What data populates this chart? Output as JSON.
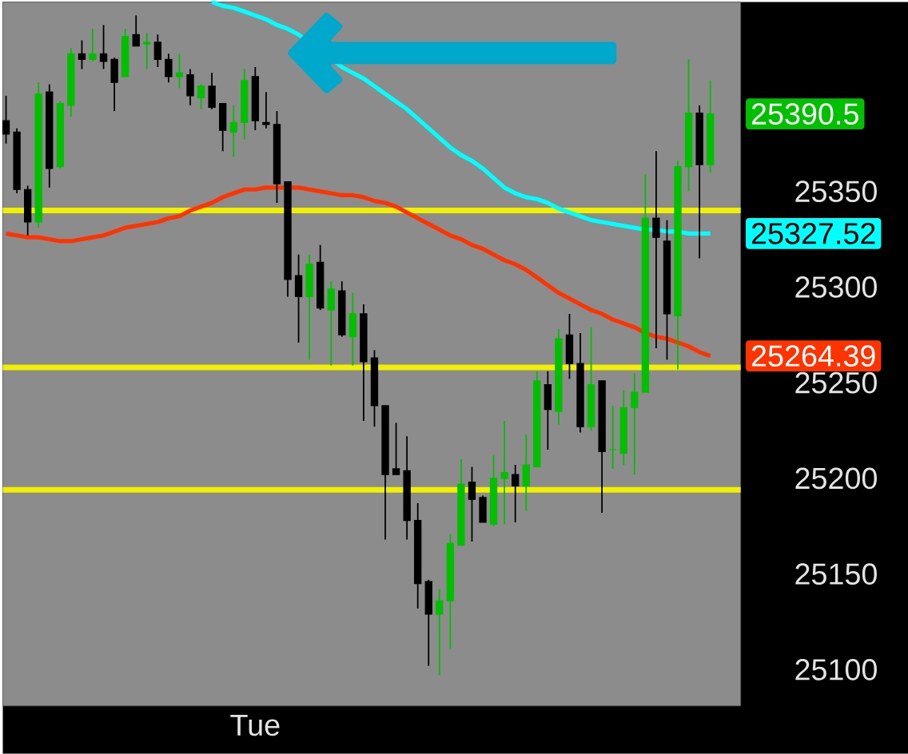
{
  "chart_data": {
    "type": "candlestick",
    "categories": [
      null,
      null,
      null,
      null,
      null,
      null,
      null,
      null,
      null,
      null,
      null,
      null,
      null,
      null,
      null,
      null,
      null,
      null,
      null,
      null,
      null,
      null,
      null,
      "Tue",
      null,
      null,
      null,
      null,
      null,
      null,
      null,
      null,
      null,
      null,
      null,
      null,
      null,
      null,
      null,
      null,
      null,
      null,
      null,
      null,
      null,
      null,
      null,
      null,
      null,
      null,
      null,
      null,
      null,
      null,
      null,
      null,
      null,
      null,
      null,
      null,
      null,
      null,
      null,
      null,
      null,
      null
    ],
    "ohlc": [
      [
        25387,
        25400,
        25375,
        25380
      ],
      [
        25381,
        25383,
        25349,
        25351
      ],
      [
        25351,
        25353,
        25327,
        25334
      ],
      [
        25334,
        25407,
        25331,
        25401
      ],
      [
        25402,
        25406,
        25352,
        25362
      ],
      [
        25363,
        25397,
        25362,
        25396
      ],
      [
        25395,
        25425,
        25389,
        25422
      ],
      [
        25422,
        25429,
        25414,
        25419
      ],
      [
        25419,
        25435,
        25418,
        25422
      ],
      [
        25422,
        25437,
        25414,
        25418
      ],
      [
        25419,
        25420,
        25392,
        25407
      ],
      [
        25410,
        25435,
        25410,
        25431
      ],
      [
        25432,
        25442,
        25426,
        25426
      ],
      [
        25427,
        25433,
        25414,
        25428
      ],
      [
        25428,
        25432,
        25415,
        25419
      ],
      [
        25419,
        25422,
        25407,
        25410
      ],
      [
        25410,
        25422,
        25404,
        25412
      ],
      [
        25411,
        25414,
        25395,
        25400
      ],
      [
        25399,
        25406,
        25393,
        25405
      ],
      [
        25405,
        25412,
        25393,
        25394
      ],
      [
        25396,
        25396,
        25371,
        25382
      ],
      [
        25381,
        25395,
        25368,
        25386
      ],
      [
        25386,
        25414,
        25377,
        25408
      ],
      [
        25410,
        25415,
        25382,
        25387
      ],
      [
        25386,
        25402,
        25383,
        25385
      ],
      [
        25385,
        25392,
        25344,
        25354
      ],
      [
        25355,
        25355,
        25295,
        25304
      ],
      [
        25306,
        25317,
        25271,
        25295
      ],
      [
        25295,
        25317,
        25262,
        25312
      ],
      [
        25313,
        25322,
        25288,
        25289
      ],
      [
        25288,
        25303,
        25259,
        25299
      ],
      [
        25298,
        25303,
        25274,
        25275
      ],
      [
        25274,
        25297,
        25259,
        25286
      ],
      [
        25286,
        25291,
        25230,
        25261
      ],
      [
        25263,
        25267,
        25227,
        25238
      ],
      [
        25238,
        25238,
        25168,
        25202
      ],
      [
        25205,
        25229,
        25202,
        25202
      ],
      [
        25204,
        25222,
        25168,
        25178
      ],
      [
        25178,
        25187,
        25132,
        25145
      ],
      [
        25146,
        25147,
        25102,
        25129
      ],
      [
        25129,
        25142,
        25097,
        25136
      ],
      [
        25136,
        25171,
        25111,
        25166
      ],
      [
        25165,
        25210,
        25165,
        25197
      ],
      [
        25198,
        25206,
        25167,
        25189
      ],
      [
        25190,
        25191,
        25177,
        25177
      ],
      [
        25176,
        25212,
        25175,
        25200
      ],
      [
        25200,
        25230,
        25176,
        25203
      ],
      [
        25202,
        25207,
        25177,
        25196
      ],
      [
        25196,
        25223,
        25183,
        25207
      ],
      [
        25206,
        25256,
        25206,
        25251
      ],
      [
        25249,
        25256,
        25215,
        25236
      ],
      [
        25235,
        25278,
        25228,
        25273
      ],
      [
        25275,
        25286,
        25252,
        25260
      ],
      [
        25260,
        25276,
        25224,
        25227
      ],
      [
        25227,
        25279,
        25225,
        25249
      ],
      [
        25251,
        25251,
        25182,
        25214
      ],
      [
        25215,
        25238,
        25205,
        25215
      ],
      [
        25213,
        25246,
        25207,
        25237
      ],
      [
        25237,
        25255,
        25202,
        25245
      ],
      [
        25245,
        25359,
        25245,
        25336
      ],
      [
        25336,
        25371,
        25268,
        25326
      ],
      [
        25324,
        25335,
        25262,
        25286
      ],
      [
        25285,
        25366,
        25257,
        25363
      ],
      [
        25363,
        25419,
        25350,
        25391
      ],
      [
        25391,
        25395,
        25315,
        25364
      ],
      [
        25364,
        25408,
        25360,
        25390.5
      ]
    ],
    "series": [
      {
        "type": "line",
        "color": "#00ffff",
        "values": [
          null,
          null,
          null,
          null,
          null,
          null,
          null,
          null,
          null,
          null,
          null,
          null,
          null,
          null,
          null,
          null,
          null,
          null,
          null,
          25449,
          25447,
          25446,
          25444,
          25442,
          25440,
          25437,
          25435,
          25432,
          null,
          null,
          null,
          25415,
          25412,
          25409,
          25405,
          25401,
          25397,
          25393,
          25388,
          25383,
          25378,
          25373,
          25369,
          25366,
          25362,
          25357,
          25352,
          25349,
          25347,
          25346,
          25344,
          25341,
          25339,
          25337,
          25335,
          25334,
          25333,
          25332,
          25331,
          25330,
          25330,
          25329,
          25329,
          25328,
          25328,
          25328
        ]
      },
      {
        "type": "line",
        "color": "#ff3300",
        "values": [
          25328,
          25327,
          25326,
          25326,
          25325,
          25324,
          25324,
          25325,
          25326,
          25327,
          25329,
          25331,
          25332,
          25333,
          25334,
          25336,
          25337,
          25340,
          25342,
          25344,
          25347,
          25349,
          25351,
          25351,
          25352,
          25352,
          25352,
          25352,
          25351,
          25350,
          25349,
          25348,
          25348,
          25347,
          25345,
          25344,
          25342,
          25339,
          25336,
          25333,
          25330,
          25327,
          25325,
          25322,
          25320,
          25317,
          25314,
          25312,
          25309,
          25305,
          25301,
          25297,
          25294,
          25291,
          25288,
          25286,
          25283,
          25281,
          25279,
          25276,
          25274,
          25273,
          25271,
          25269,
          25266,
          25264
        ]
      }
    ],
    "ylim": [
      25081,
      25449
    ],
    "yticks": [
      25100,
      25150,
      25200,
      25250,
      25300,
      25350
    ],
    "ref_lines": [
      {
        "axis": "y",
        "value": 25340,
        "color": "#f0f000"
      },
      {
        "axis": "y",
        "value": 25258,
        "color": "#f0f000"
      },
      {
        "axis": "y",
        "value": 25194,
        "color": "#f0f000"
      }
    ],
    "annotations": [
      "25390.5",
      "25327.52",
      "25264.39"
    ]
  }
}
